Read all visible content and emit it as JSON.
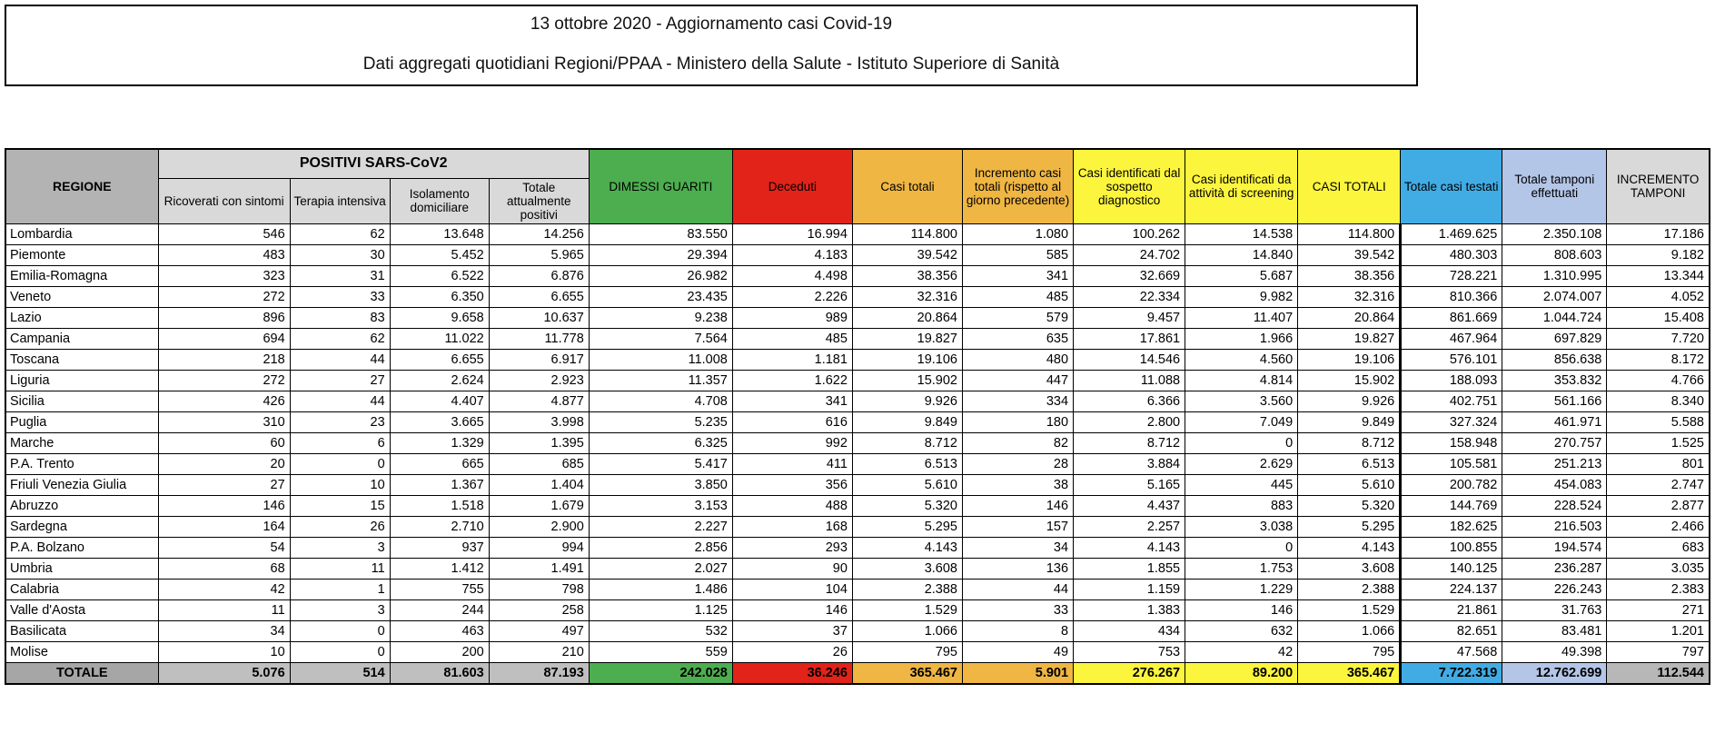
{
  "title_box": {
    "line1": "13 ottobre 2020 - Aggiornamento casi Covid-19",
    "line2": "Dati aggregati quotidiani Regioni/PPAA - Ministero della Salute - Istituto Superiore di Sanità"
  },
  "colors": {
    "regione_header_bg": "#b3b3b3",
    "subheader_gray": "#d9d9d9",
    "green": "#4cae4f",
    "red": "#e2231a",
    "orange": "#efb643",
    "yellow": "#fcf53d",
    "blue": "#41ace4",
    "lavender": "#b4c6e7",
    "totale_label_bg": "#a6a6a6",
    "totale_gray_bg": "#bfbfbf",
    "totale_incr_tamponi_bg": "#b7b7b7"
  },
  "table": {
    "regione_header": "REGIONE",
    "positivi_group_header": "POSITIVI SARS-CoV2",
    "columns": [
      {
        "key": "ricoverati",
        "label": "Ricoverati con sintomi",
        "header_bg": "#d9d9d9",
        "total_bg": "#bfbfbf"
      },
      {
        "key": "terapia",
        "label": "Terapia intensiva",
        "header_bg": "#d9d9d9",
        "total_bg": "#bfbfbf"
      },
      {
        "key": "isolamento",
        "label": "Isolamento domiciliare",
        "header_bg": "#d9d9d9",
        "total_bg": "#bfbfbf"
      },
      {
        "key": "tot_positivi",
        "label": "Totale attualmente positivi",
        "header_bg": "#d9d9d9",
        "total_bg": "#bfbfbf"
      },
      {
        "key": "dimessi",
        "label": "DIMESSI GUARITI",
        "header_bg": "#4cae4f",
        "total_bg": "#4cae4f"
      },
      {
        "key": "deceduti",
        "label": "Deceduti",
        "header_bg": "#e2231a",
        "total_bg": "#e2231a"
      },
      {
        "key": "casi_totali",
        "label": "Casi totali",
        "header_bg": "#efb643",
        "total_bg": "#efb643"
      },
      {
        "key": "incremento_casi",
        "label": "Incremento casi totali (rispetto al giorno precedente)",
        "header_bg": "#efb643",
        "total_bg": "#efb643"
      },
      {
        "key": "sospetto",
        "label": "Casi identificati dal sospetto diagnostico",
        "header_bg": "#fcf53d",
        "total_bg": "#fcf53d"
      },
      {
        "key": "screening",
        "label": "Casi identificati da attività di screening",
        "header_bg": "#fcf53d",
        "total_bg": "#fcf53d"
      },
      {
        "key": "casi_totali_2",
        "label": "CASI TOTALI",
        "header_bg": "#fcf53d",
        "total_bg": "#fcf53d"
      },
      {
        "key": "casi_testati",
        "label": "Totale casi testati",
        "header_bg": "#41ace4",
        "total_bg": "#41ace4"
      },
      {
        "key": "tamponi",
        "label": "Totale tamponi effettuati",
        "header_bg": "#b4c6e7",
        "total_bg": "#b4c6e7"
      },
      {
        "key": "incremento_tamponi",
        "label": "INCREMENTO TAMPONI",
        "header_bg": "#d9d9d9",
        "total_bg": "#b7b7b7"
      }
    ],
    "rows": [
      {
        "region": "Lombardia",
        "values": [
          "546",
          "62",
          "13.648",
          "14.256",
          "83.550",
          "16.994",
          "114.800",
          "1.080",
          "100.262",
          "14.538",
          "114.800",
          "1.469.625",
          "2.350.108",
          "17.186"
        ]
      },
      {
        "region": "Piemonte",
        "values": [
          "483",
          "30",
          "5.452",
          "5.965",
          "29.394",
          "4.183",
          "39.542",
          "585",
          "24.702",
          "14.840",
          "39.542",
          "480.303",
          "808.603",
          "9.182"
        ]
      },
      {
        "region": "Emilia-Romagna",
        "values": [
          "323",
          "31",
          "6.522",
          "6.876",
          "26.982",
          "4.498",
          "38.356",
          "341",
          "32.669",
          "5.687",
          "38.356",
          "728.221",
          "1.310.995",
          "13.344"
        ]
      },
      {
        "region": "Veneto",
        "values": [
          "272",
          "33",
          "6.350",
          "6.655",
          "23.435",
          "2.226",
          "32.316",
          "485",
          "22.334",
          "9.982",
          "32.316",
          "810.366",
          "2.074.007",
          "4.052"
        ]
      },
      {
        "region": "Lazio",
        "values": [
          "896",
          "83",
          "9.658",
          "10.637",
          "9.238",
          "989",
          "20.864",
          "579",
          "9.457",
          "11.407",
          "20.864",
          "861.669",
          "1.044.724",
          "15.408"
        ]
      },
      {
        "region": "Campania",
        "values": [
          "694",
          "62",
          "11.022",
          "11.778",
          "7.564",
          "485",
          "19.827",
          "635",
          "17.861",
          "1.966",
          "19.827",
          "467.964",
          "697.829",
          "7.720"
        ]
      },
      {
        "region": "Toscana",
        "values": [
          "218",
          "44",
          "6.655",
          "6.917",
          "11.008",
          "1.181",
          "19.106",
          "480",
          "14.546",
          "4.560",
          "19.106",
          "576.101",
          "856.638",
          "8.172"
        ]
      },
      {
        "region": "Liguria",
        "values": [
          "272",
          "27",
          "2.624",
          "2.923",
          "11.357",
          "1.622",
          "15.902",
          "447",
          "11.088",
          "4.814",
          "15.902",
          "188.093",
          "353.832",
          "4.766"
        ]
      },
      {
        "region": "Sicilia",
        "values": [
          "426",
          "44",
          "4.407",
          "4.877",
          "4.708",
          "341",
          "9.926",
          "334",
          "6.366",
          "3.560",
          "9.926",
          "402.751",
          "561.166",
          "8.340"
        ]
      },
      {
        "region": "Puglia",
        "values": [
          "310",
          "23",
          "3.665",
          "3.998",
          "5.235",
          "616",
          "9.849",
          "180",
          "2.800",
          "7.049",
          "9.849",
          "327.324",
          "461.971",
          "5.588"
        ]
      },
      {
        "region": "Marche",
        "values": [
          "60",
          "6",
          "1.329",
          "1.395",
          "6.325",
          "992",
          "8.712",
          "82",
          "8.712",
          "0",
          "8.712",
          "158.948",
          "270.757",
          "1.525"
        ]
      },
      {
        "region": "P.A. Trento",
        "values": [
          "20",
          "0",
          "665",
          "685",
          "5.417",
          "411",
          "6.513",
          "28",
          "3.884",
          "2.629",
          "6.513",
          "105.581",
          "251.213",
          "801"
        ]
      },
      {
        "region": "Friuli Venezia Giulia",
        "values": [
          "27",
          "10",
          "1.367",
          "1.404",
          "3.850",
          "356",
          "5.610",
          "38",
          "5.165",
          "445",
          "5.610",
          "200.782",
          "454.083",
          "2.747"
        ]
      },
      {
        "region": "Abruzzo",
        "values": [
          "146",
          "15",
          "1.518",
          "1.679",
          "3.153",
          "488",
          "5.320",
          "146",
          "4.437",
          "883",
          "5.320",
          "144.769",
          "228.524",
          "2.877"
        ]
      },
      {
        "region": "Sardegna",
        "values": [
          "164",
          "26",
          "2.710",
          "2.900",
          "2.227",
          "168",
          "5.295",
          "157",
          "2.257",
          "3.038",
          "5.295",
          "182.625",
          "216.503",
          "2.466"
        ]
      },
      {
        "region": "P.A. Bolzano",
        "values": [
          "54",
          "3",
          "937",
          "994",
          "2.856",
          "293",
          "4.143",
          "34",
          "4.143",
          "0",
          "4.143",
          "100.855",
          "194.574",
          "683"
        ]
      },
      {
        "region": "Umbria",
        "values": [
          "68",
          "11",
          "1.412",
          "1.491",
          "2.027",
          "90",
          "3.608",
          "136",
          "1.855",
          "1.753",
          "3.608",
          "140.125",
          "236.287",
          "3.035"
        ]
      },
      {
        "region": "Calabria",
        "values": [
          "42",
          "1",
          "755",
          "798",
          "1.486",
          "104",
          "2.388",
          "44",
          "1.159",
          "1.229",
          "2.388",
          "224.137",
          "226.243",
          "2.383"
        ]
      },
      {
        "region": "Valle d'Aosta",
        "values": [
          "11",
          "3",
          "244",
          "258",
          "1.125",
          "146",
          "1.529",
          "33",
          "1.383",
          "146",
          "1.529",
          "21.861",
          "31.763",
          "271"
        ]
      },
      {
        "region": "Basilicata",
        "values": [
          "34",
          "0",
          "463",
          "497",
          "532",
          "37",
          "1.066",
          "8",
          "434",
          "632",
          "1.066",
          "82.651",
          "83.481",
          "1.201"
        ]
      },
      {
        "region": "Molise",
        "values": [
          "10",
          "0",
          "200",
          "210",
          "559",
          "26",
          "795",
          "49",
          "753",
          "42",
          "795",
          "47.568",
          "49.398",
          "797"
        ]
      }
    ],
    "totale": {
      "label": "TOTALE",
      "values": [
        "5.076",
        "514",
        "81.603",
        "87.193",
        "242.028",
        "36.246",
        "365.467",
        "5.901",
        "276.267",
        "89.200",
        "365.467",
        "7.722.319",
        "12.762.699",
        "112.544"
      ]
    }
  }
}
